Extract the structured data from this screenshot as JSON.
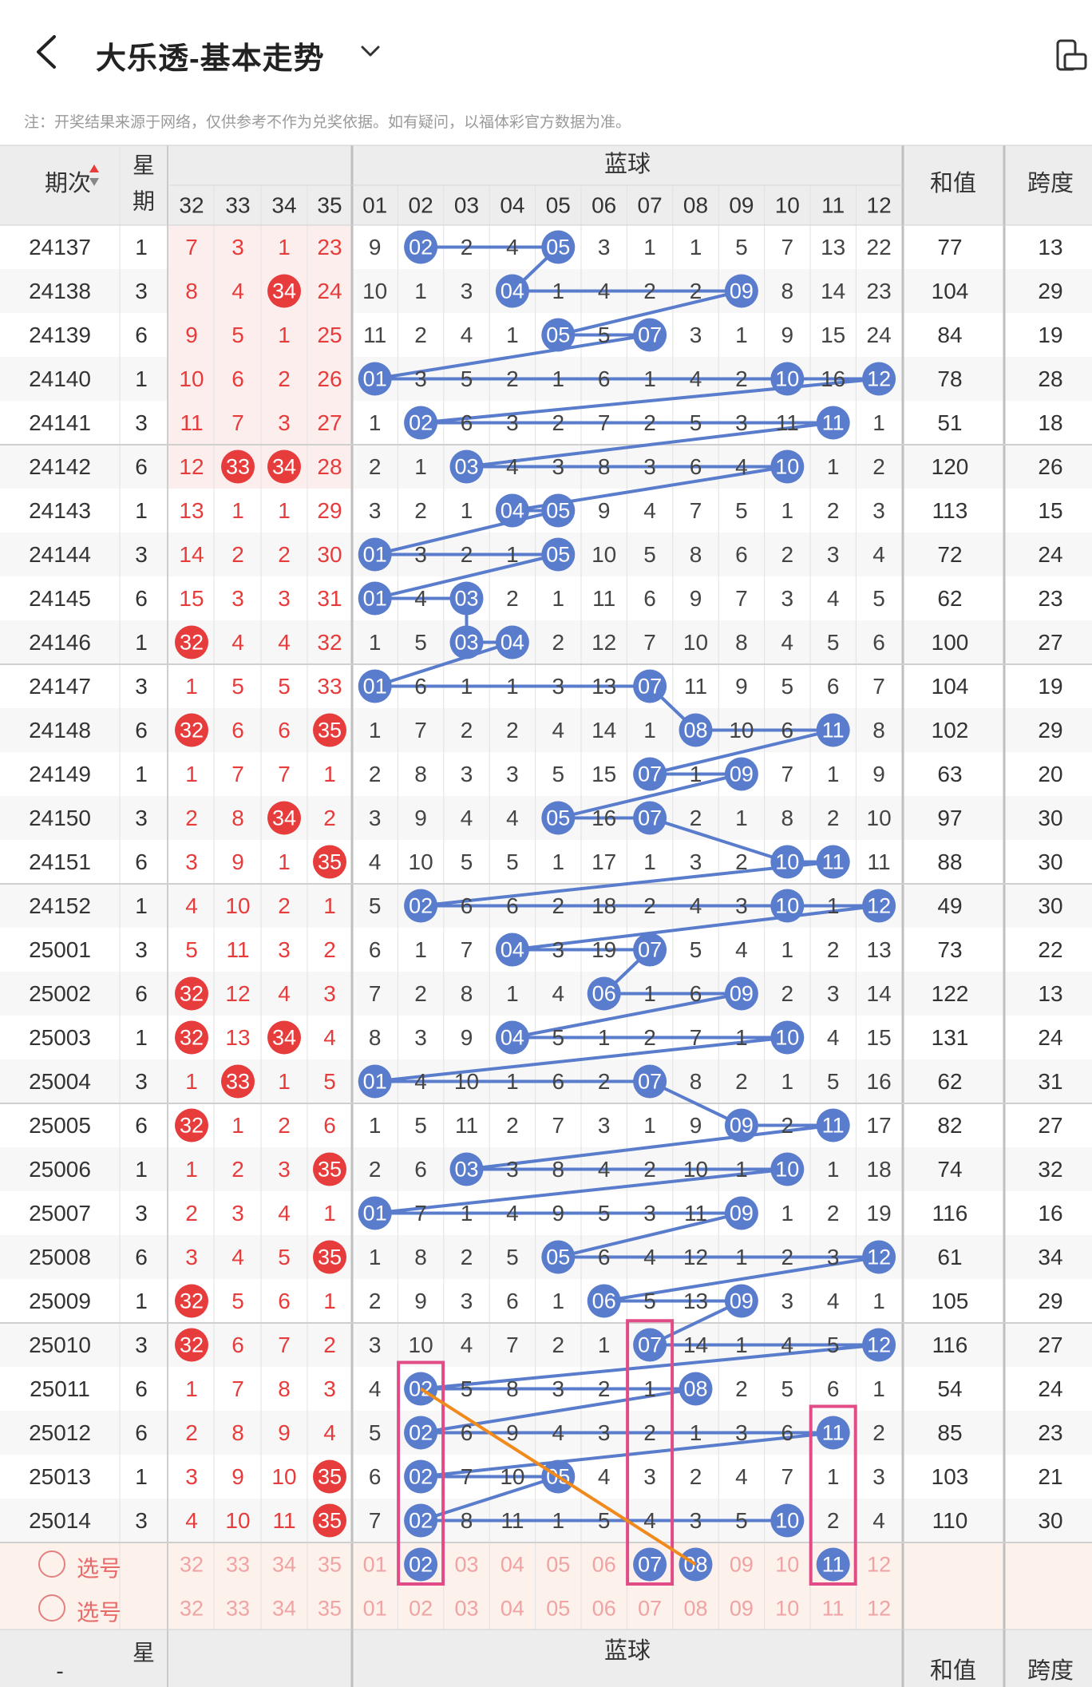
{
  "header": {
    "title": "大乐透-基本走势",
    "note": "注：开奖结果来源于网络，仅供参考不作为兑奖依据。如有疑问，以福体彩官方数据为准。"
  },
  "table": {
    "head": {
      "period": "期次",
      "weekday": "星期",
      "blue_group": "蓝球",
      "sum": "和值",
      "span": "跨度"
    },
    "red_cols": [
      "32",
      "33",
      "34",
      "35"
    ],
    "blue_cols": [
      "01",
      "02",
      "03",
      "04",
      "05",
      "06",
      "07",
      "08",
      "09",
      "10",
      "11",
      "12"
    ],
    "rows": [
      {
        "p": "24137",
        "w": "1",
        "red": [
          "7",
          "3",
          "1",
          "23"
        ],
        "blue": [
          "9",
          "02",
          "2",
          "4",
          "05",
          "3",
          "1",
          "1",
          "5",
          "7",
          "13",
          "22"
        ],
        "sum": "77",
        "span": "13"
      },
      {
        "p": "24138",
        "w": "3",
        "red": [
          "8",
          "4",
          "34",
          "24"
        ],
        "blue": [
          "10",
          "1",
          "3",
          "04",
          "1",
          "4",
          "2",
          "2",
          "09",
          "8",
          "14",
          "23"
        ],
        "sum": "104",
        "span": "29"
      },
      {
        "p": "24139",
        "w": "6",
        "red": [
          "9",
          "5",
          "1",
          "25"
        ],
        "blue": [
          "11",
          "2",
          "4",
          "1",
          "05",
          "5",
          "07",
          "3",
          "1",
          "9",
          "15",
          "24"
        ],
        "sum": "84",
        "span": "19"
      },
      {
        "p": "24140",
        "w": "1",
        "red": [
          "10",
          "6",
          "2",
          "26"
        ],
        "blue": [
          "01",
          "3",
          "5",
          "2",
          "1",
          "6",
          "1",
          "4",
          "2",
          "10",
          "16",
          "12"
        ],
        "sum": "78",
        "span": "28"
      },
      {
        "p": "24141",
        "w": "3",
        "red": [
          "11",
          "7",
          "3",
          "27"
        ],
        "blue": [
          "1",
          "02",
          "6",
          "3",
          "2",
          "7",
          "2",
          "5",
          "3",
          "11",
          "11",
          "1"
        ],
        "sum": "51",
        "span": "18"
      },
      {
        "p": "24142",
        "w": "6",
        "red": [
          "12",
          "33",
          "34",
          "28"
        ],
        "blue": [
          "2",
          "1",
          "03",
          "4",
          "3",
          "8",
          "3",
          "6",
          "4",
          "10",
          "1",
          "2"
        ],
        "sum": "120",
        "span": "26"
      },
      {
        "p": "24143",
        "w": "1",
        "red": [
          "13",
          "1",
          "1",
          "29"
        ],
        "blue": [
          "3",
          "2",
          "1",
          "04",
          "05",
          "9",
          "4",
          "7",
          "5",
          "1",
          "2",
          "3"
        ],
        "sum": "113",
        "span": "15"
      },
      {
        "p": "24144",
        "w": "3",
        "red": [
          "14",
          "2",
          "2",
          "30"
        ],
        "blue": [
          "01",
          "3",
          "2",
          "1",
          "05",
          "10",
          "5",
          "8",
          "6",
          "2",
          "3",
          "4"
        ],
        "sum": "72",
        "span": "24"
      },
      {
        "p": "24145",
        "w": "6",
        "red": [
          "15",
          "3",
          "3",
          "31"
        ],
        "blue": [
          "01",
          "4",
          "03",
          "2",
          "1",
          "11",
          "6",
          "9",
          "7",
          "3",
          "4",
          "5"
        ],
        "sum": "62",
        "span": "23"
      },
      {
        "p": "24146",
        "w": "1",
        "red": [
          "32",
          "4",
          "4",
          "32"
        ],
        "blue": [
          "1",
          "5",
          "03",
          "04",
          "2",
          "12",
          "7",
          "10",
          "8",
          "4",
          "5",
          "6"
        ],
        "sum": "100",
        "span": "27"
      },
      {
        "p": "24147",
        "w": "3",
        "red": [
          "1",
          "5",
          "5",
          "33"
        ],
        "blue": [
          "01",
          "6",
          "1",
          "1",
          "3",
          "13",
          "07",
          "11",
          "9",
          "5",
          "6",
          "7"
        ],
        "sum": "104",
        "span": "19"
      },
      {
        "p": "24148",
        "w": "6",
        "red": [
          "32",
          "6",
          "6",
          "35"
        ],
        "blue": [
          "1",
          "7",
          "2",
          "2",
          "4",
          "14",
          "1",
          "08",
          "10",
          "6",
          "11",
          "8"
        ],
        "sum": "102",
        "span": "29"
      },
      {
        "p": "24149",
        "w": "1",
        "red": [
          "1",
          "7",
          "7",
          "1"
        ],
        "blue": [
          "2",
          "8",
          "3",
          "3",
          "5",
          "15",
          "07",
          "1",
          "09",
          "7",
          "1",
          "9"
        ],
        "sum": "63",
        "span": "20"
      },
      {
        "p": "24150",
        "w": "3",
        "red": [
          "2",
          "8",
          "34",
          "2"
        ],
        "blue": [
          "3",
          "9",
          "4",
          "4",
          "05",
          "16",
          "07",
          "2",
          "1",
          "8",
          "2",
          "10"
        ],
        "sum": "97",
        "span": "30"
      },
      {
        "p": "24151",
        "w": "6",
        "red": [
          "3",
          "9",
          "1",
          "35"
        ],
        "blue": [
          "4",
          "10",
          "5",
          "5",
          "1",
          "17",
          "1",
          "3",
          "2",
          "10",
          "11",
          "11"
        ],
        "sum": "88",
        "span": "30"
      },
      {
        "p": "24152",
        "w": "1",
        "red": [
          "4",
          "10",
          "2",
          "1"
        ],
        "blue": [
          "5",
          "02",
          "6",
          "6",
          "2",
          "18",
          "2",
          "4",
          "3",
          "10",
          "1",
          "12"
        ],
        "sum": "49",
        "span": "30"
      },
      {
        "p": "25001",
        "w": "3",
        "red": [
          "5",
          "11",
          "3",
          "2"
        ],
        "blue": [
          "6",
          "1",
          "7",
          "04",
          "3",
          "19",
          "07",
          "5",
          "4",
          "1",
          "2",
          "13"
        ],
        "sum": "73",
        "span": "22"
      },
      {
        "p": "25002",
        "w": "6",
        "red": [
          "32",
          "12",
          "4",
          "3"
        ],
        "blue": [
          "7",
          "2",
          "8",
          "1",
          "4",
          "06",
          "1",
          "6",
          "09",
          "2",
          "3",
          "14"
        ],
        "sum": "122",
        "span": "13"
      },
      {
        "p": "25003",
        "w": "1",
        "red": [
          "32",
          "13",
          "34",
          "4"
        ],
        "blue": [
          "8",
          "3",
          "9",
          "04",
          "5",
          "1",
          "2",
          "7",
          "1",
          "10",
          "4",
          "15"
        ],
        "sum": "131",
        "span": "24"
      },
      {
        "p": "25004",
        "w": "3",
        "red": [
          "1",
          "33",
          "1",
          "5"
        ],
        "blue": [
          "01",
          "4",
          "10",
          "1",
          "6",
          "2",
          "07",
          "8",
          "2",
          "1",
          "5",
          "16"
        ],
        "sum": "62",
        "span": "31"
      },
      {
        "p": "25005",
        "w": "6",
        "red": [
          "32",
          "1",
          "2",
          "6"
        ],
        "blue": [
          "1",
          "5",
          "11",
          "2",
          "7",
          "3",
          "1",
          "9",
          "09",
          "2",
          "11",
          "17"
        ],
        "sum": "82",
        "span": "27"
      },
      {
        "p": "25006",
        "w": "1",
        "red": [
          "1",
          "2",
          "3",
          "35"
        ],
        "blue": [
          "2",
          "6",
          "03",
          "3",
          "8",
          "4",
          "2",
          "10",
          "1",
          "10",
          "1",
          "18"
        ],
        "sum": "74",
        "span": "32"
      },
      {
        "p": "25007",
        "w": "3",
        "red": [
          "2",
          "3",
          "4",
          "1"
        ],
        "blue": [
          "01",
          "7",
          "1",
          "4",
          "9",
          "5",
          "3",
          "11",
          "09",
          "1",
          "2",
          "19"
        ],
        "sum": "116",
        "span": "16"
      },
      {
        "p": "25008",
        "w": "6",
        "red": [
          "3",
          "4",
          "5",
          "35"
        ],
        "blue": [
          "1",
          "8",
          "2",
          "5",
          "05",
          "6",
          "4",
          "12",
          "1",
          "2",
          "3",
          "12"
        ],
        "sum": "61",
        "span": "34"
      },
      {
        "p": "25009",
        "w": "1",
        "red": [
          "32",
          "5",
          "6",
          "1"
        ],
        "blue": [
          "2",
          "9",
          "3",
          "6",
          "1",
          "06",
          "5",
          "13",
          "09",
          "3",
          "4",
          "1"
        ],
        "sum": "105",
        "span": "29"
      },
      {
        "p": "25010",
        "w": "3",
        "red": [
          "32",
          "6",
          "7",
          "2"
        ],
        "blue": [
          "3",
          "10",
          "4",
          "7",
          "2",
          "1",
          "07",
          "14",
          "1",
          "4",
          "5",
          "12"
        ],
        "sum": "116",
        "span": "27"
      },
      {
        "p": "25011",
        "w": "6",
        "red": [
          "1",
          "7",
          "8",
          "3"
        ],
        "blue": [
          "4",
          "02",
          "5",
          "8",
          "3",
          "2",
          "1",
          "08",
          "2",
          "5",
          "6",
          "1"
        ],
        "sum": "54",
        "span": "24"
      },
      {
        "p": "25012",
        "w": "6",
        "red": [
          "2",
          "8",
          "9",
          "4"
        ],
        "blue": [
          "5",
          "02",
          "6",
          "9",
          "4",
          "3",
          "2",
          "1",
          "3",
          "6",
          "11",
          "2"
        ],
        "sum": "85",
        "span": "23"
      },
      {
        "p": "25013",
        "w": "1",
        "red": [
          "3",
          "9",
          "10",
          "35"
        ],
        "blue": [
          "6",
          "02",
          "7",
          "10",
          "05",
          "4",
          "3",
          "2",
          "4",
          "7",
          "1",
          "3"
        ],
        "sum": "103",
        "span": "21"
      },
      {
        "p": "25014",
        "w": "3",
        "red": [
          "4",
          "10",
          "11",
          "35"
        ],
        "blue": [
          "7",
          "02",
          "8",
          "11",
          "1",
          "5",
          "4",
          "3",
          "5",
          "10",
          "2",
          "4"
        ],
        "sum": "110",
        "span": "30"
      }
    ],
    "pick_label": "选号",
    "pick_rows": [
      {
        "red_selected": [],
        "blue_selected": [
          "02",
          "07",
          "08",
          "11"
        ]
      },
      {
        "red_selected": [],
        "blue_selected": []
      }
    ],
    "footer": {
      "period": "-",
      "weekday": "星期",
      "blue_group": "蓝球",
      "sum": "和值",
      "span": "跨度"
    }
  },
  "colors": {
    "red": "#e63c3c",
    "blue_ball": "#5a7ccc",
    "trend_line": "#5a7ccc",
    "pink_box": "#e24c86",
    "orange_line": "#f08a1c",
    "red_zone_bg": "#fdeeee",
    "pick_bg": "#fdf1ec"
  },
  "icons": {
    "back": "back-chevron-icon",
    "title_dropdown": "chevron-down-icon",
    "switch": "orientation-switch-icon",
    "sort": "sort-arrows-icon",
    "radio": "radio-circle-icon"
  }
}
